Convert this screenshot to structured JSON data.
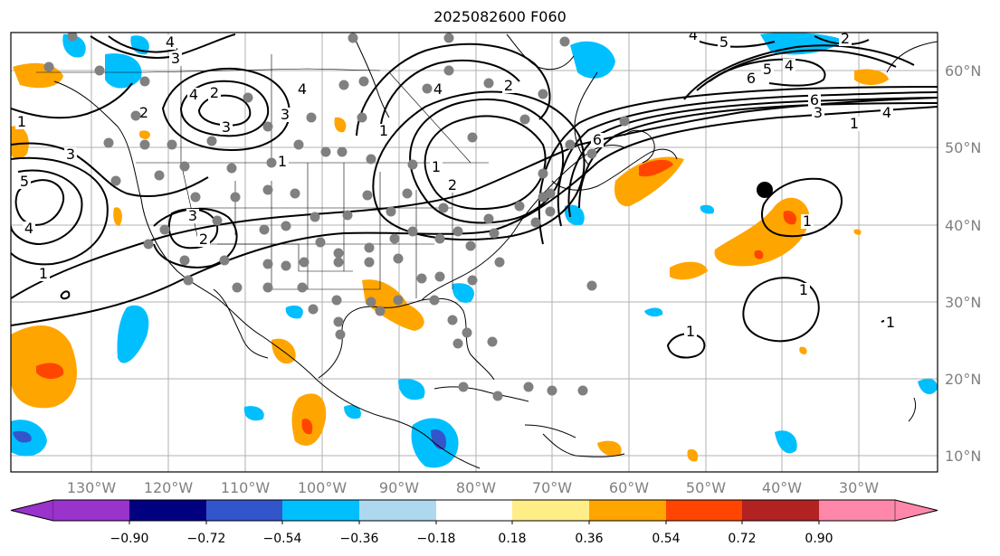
{
  "title": "2025082600 F060",
  "map": {
    "lon_labels": [
      "130°W",
      "120°W",
      "110°W",
      "100°W",
      "90°W",
      "80°W",
      "70°W",
      "60°W",
      "50°W",
      "40°W",
      "30°W"
    ],
    "lat_labels": [
      "60°N",
      "50°N",
      "40°N",
      "30°N",
      "20°N",
      "10°N"
    ],
    "contour_labels": [
      "1",
      "2",
      "3",
      "4",
      "5",
      "6"
    ],
    "marker_color": "#000000",
    "station_color": "#808080"
  },
  "colorbar": {
    "ticks": [
      "−0.90",
      "−0.72",
      "−0.54",
      "−0.36",
      "−0.18",
      "0.18",
      "0.36",
      "0.54",
      "0.72",
      "0.90"
    ],
    "colors": [
      "#9933cc",
      "#000080",
      "#3355cc",
      "#00bfff",
      "#add8f0",
      "#ffffff",
      "#ffee88",
      "#ffa500",
      "#ff4500",
      "#b22222",
      "#ff88aa"
    ]
  }
}
